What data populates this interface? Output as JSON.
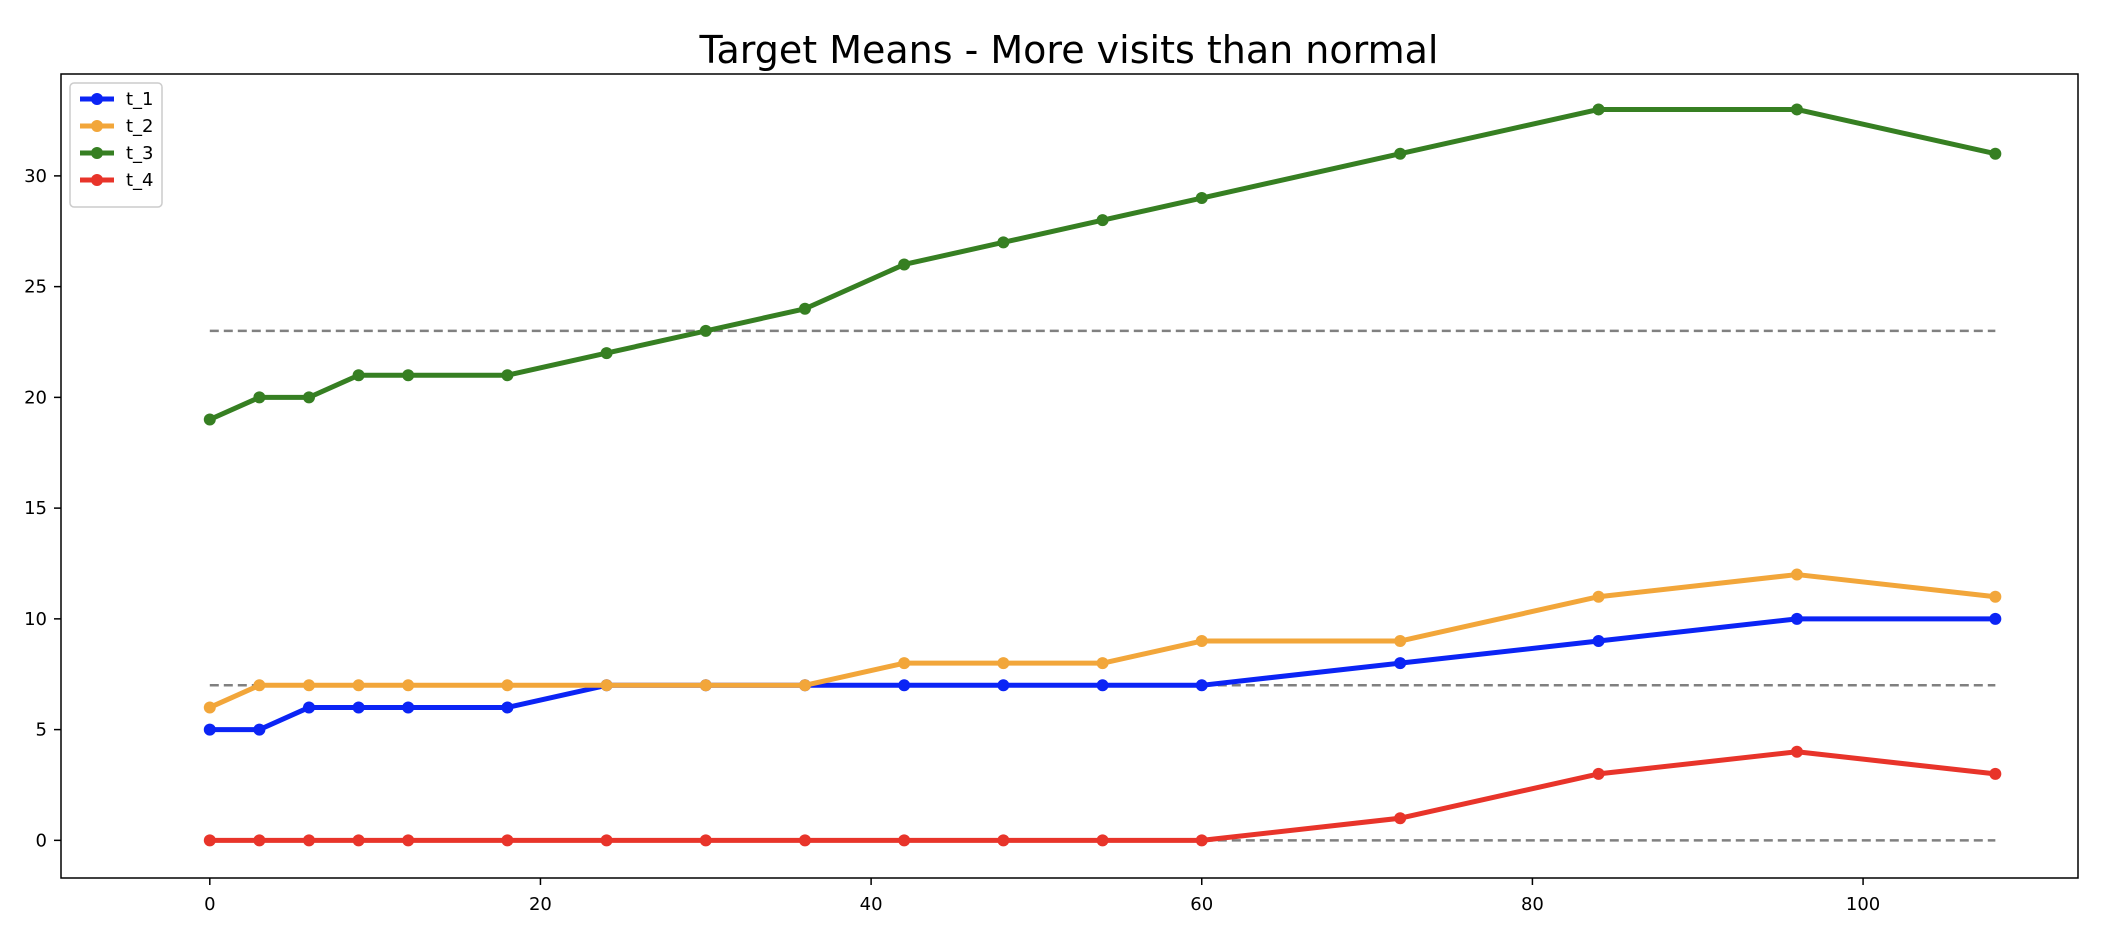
{
  "chart_data": {
    "type": "line",
    "title": "Target Means - More visits than normal",
    "xlabel": "",
    "ylabel": "",
    "xlim": [
      -9,
      113
    ],
    "ylim": [
      -1.7,
      34.6
    ],
    "x_ticks": [
      0,
      20,
      40,
      60,
      80,
      100
    ],
    "y_ticks": [
      0,
      5,
      10,
      15,
      20,
      25,
      30
    ],
    "grid": false,
    "legend_position": "top-left",
    "x": [
      0,
      3,
      6,
      9,
      12,
      18,
      24,
      30,
      36,
      42,
      48,
      54,
      60,
      72,
      84,
      96,
      108
    ],
    "series": [
      {
        "name": "t_1",
        "color": "#0b24f5",
        "values": [
          5,
          5,
          6,
          6,
          6,
          6,
          7,
          7,
          7,
          7,
          7,
          7,
          7,
          8,
          9,
          10,
          10
        ]
      },
      {
        "name": "t_2",
        "color": "#f2a63a",
        "values": [
          6,
          7,
          7,
          7,
          7,
          7,
          7,
          7,
          7,
          8,
          8,
          8,
          9,
          9,
          11,
          12,
          11
        ]
      },
      {
        "name": "t_3",
        "color": "#367f22",
        "values": [
          19,
          20,
          20,
          21,
          21,
          21,
          22,
          23,
          24,
          26,
          27,
          28,
          29,
          31,
          33,
          33,
          31
        ]
      },
      {
        "name": "t_4",
        "color": "#e8342a",
        "values": [
          0,
          0,
          0,
          0,
          0,
          0,
          0,
          0,
          0,
          0,
          0,
          0,
          0,
          1,
          3,
          4,
          3
        ]
      }
    ],
    "reference_lines": [
      {
        "y": 23,
        "x_range": [
          0,
          108
        ],
        "color": "#808080",
        "style": "dashed"
      },
      {
        "y": 7,
        "x_range": [
          0,
          108
        ],
        "color": "#808080",
        "style": "dashed"
      },
      {
        "y": 0,
        "x_range": [
          0,
          108
        ],
        "color": "#808080",
        "style": "dashed"
      }
    ]
  }
}
